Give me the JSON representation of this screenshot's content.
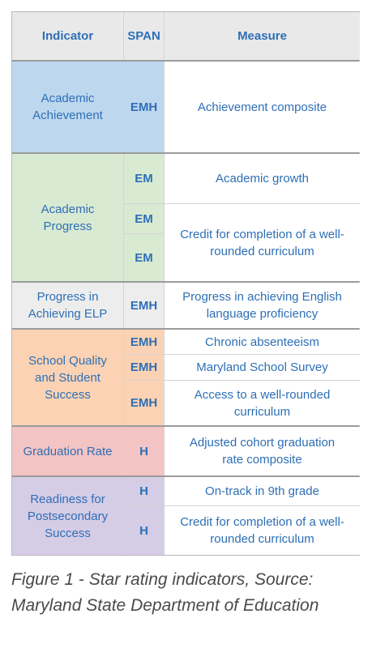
{
  "header": {
    "indicator": "Indicator",
    "span": "SPAN",
    "measure": "Measure"
  },
  "colors": {
    "academic_achievement": "#bdd7ee",
    "academic_progress": "#d9ead3",
    "progress_elp": "#ededed",
    "school_quality": "#fbd3b4",
    "graduation_rate": "#f3c4c4",
    "readiness": "#d5cce6",
    "header_bg": "#e9e9e9",
    "text_blue": "#2e6fb5"
  },
  "groups": [
    {
      "indicator": "Academic Achievement",
      "rows": [
        {
          "span": "EMH",
          "measure": "Achievement composite"
        }
      ]
    },
    {
      "indicator": "Academic Progress",
      "rows": [
        {
          "span": "EM",
          "measure": "Academic growth"
        },
        {
          "span": "EM",
          "measure": "Credit for completion of a well-rounded curriculum"
        },
        {
          "span": "EM"
        }
      ]
    },
    {
      "indicator": "Progress in Achieving ELP",
      "rows": [
        {
          "span": "EMH",
          "measure": "Progress in achieving English language proficiency"
        }
      ]
    },
    {
      "indicator": "School Quality and Student Success",
      "rows": [
        {
          "span": "EMH",
          "measure": "Chronic absenteeism"
        },
        {
          "span": "EMH",
          "measure": "Maryland School Survey"
        },
        {
          "span": "EMH",
          "measure": "Access to a well-rounded curriculum"
        }
      ]
    },
    {
      "indicator": "Graduation Rate",
      "rows": [
        {
          "span": "H",
          "measure": "Adjusted cohort graduation rate composite"
        }
      ]
    },
    {
      "indicator": "Readiness for Postsecondary Success",
      "rows": [
        {
          "span": "H",
          "measure": "On-track in 9th grade"
        },
        {
          "span": "H",
          "measure": "Credit for completion of a well-rounded curriculum"
        }
      ]
    }
  ],
  "caption": "Figure 1 - Star rating indicators, Source: Maryland State Department of Education"
}
